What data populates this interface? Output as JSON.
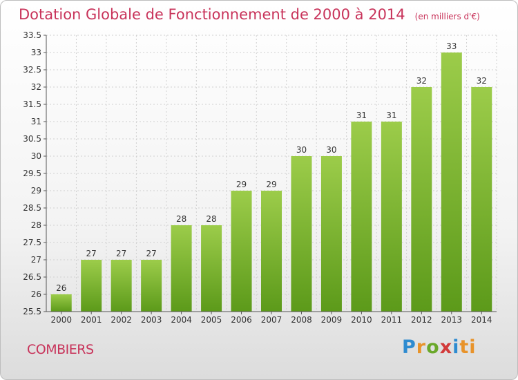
{
  "colors": {
    "title": "#c8335a",
    "bar_top": "#9ccc4a",
    "bar_bottom": "#5c9a1a",
    "logo": [
      "#2e8bd0",
      "#e8932a",
      "#6aa82a",
      "#d23a3a",
      "#2e8bd0",
      "#e8932a"
    ]
  },
  "chart_data": {
    "type": "bar",
    "title": "Dotation Globale de Fonctionnement de 2000 à 2014",
    "subtitle": "(en milliers d'€)",
    "xlabel": "",
    "ylabel": "",
    "categories": [
      "2000",
      "2001",
      "2002",
      "2003",
      "2004",
      "2005",
      "2006",
      "2007",
      "2008",
      "2009",
      "2010",
      "2011",
      "2012",
      "2013",
      "2014"
    ],
    "values": [
      26,
      27,
      27,
      27,
      28,
      28,
      29,
      29,
      30,
      30,
      31,
      31,
      32,
      33,
      32
    ],
    "value_labels": [
      "26",
      "27",
      "27",
      "27",
      "28",
      "28",
      "29",
      "29",
      "30",
      "30",
      "31",
      "31",
      "32",
      "33",
      "32"
    ],
    "ylim": [
      25.5,
      33.5
    ],
    "yticks": [
      25.5,
      26,
      26.5,
      27,
      27.5,
      28,
      28.5,
      29,
      29.5,
      30,
      30.5,
      31,
      31.5,
      32,
      32.5,
      33,
      33.5
    ],
    "ytick_labels": [
      "25.5",
      "26",
      "26.5",
      "27",
      "27.5",
      "28",
      "28.5",
      "29",
      "29.5",
      "30",
      "30.5",
      "31",
      "31.5",
      "32",
      "32.5",
      "33",
      "33.5"
    ],
    "grid": true,
    "legend": "none"
  },
  "footer": {
    "commune": "COMBIERS"
  },
  "logo": {
    "letters": [
      "P",
      "r",
      "o",
      "x",
      "i",
      "ti"
    ]
  }
}
